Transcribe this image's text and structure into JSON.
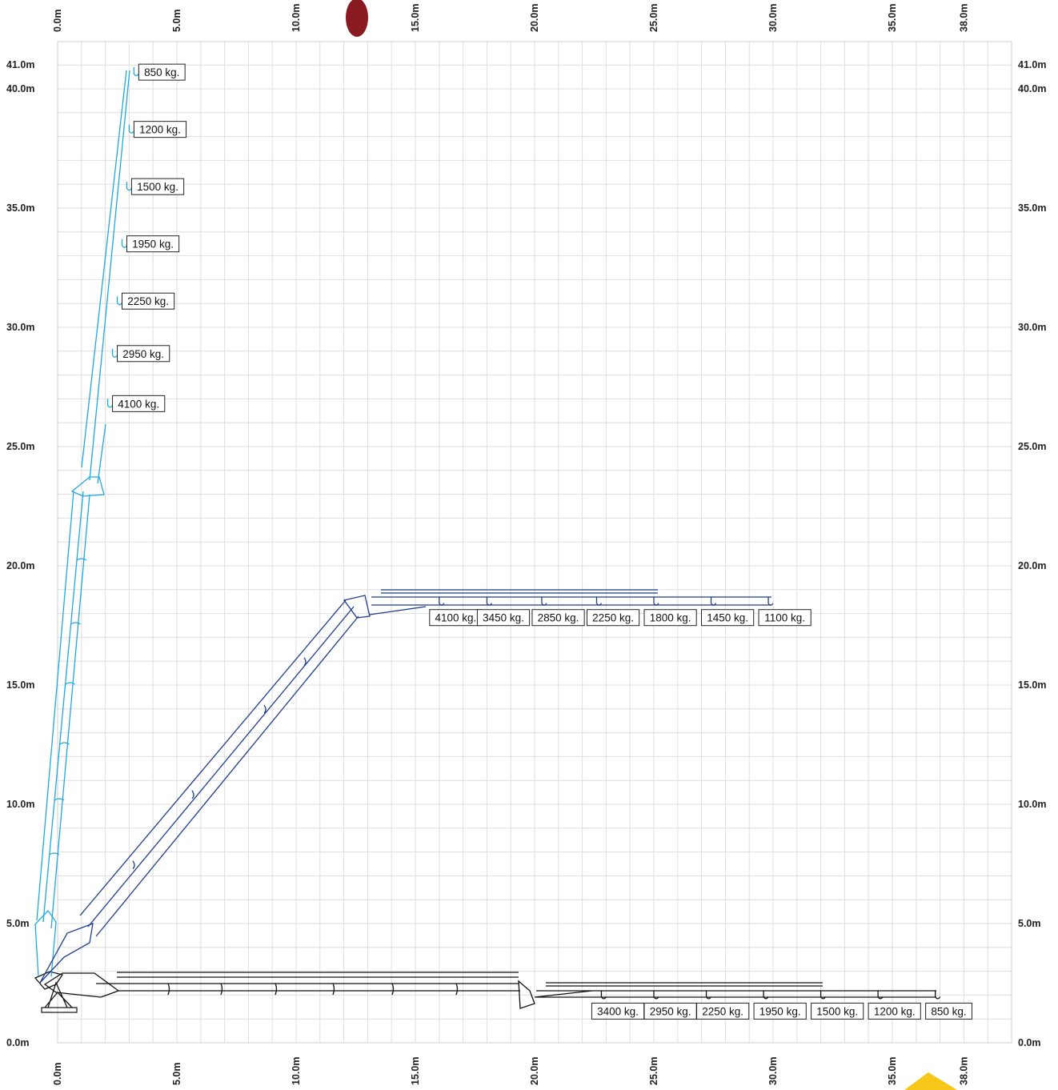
{
  "chart_data": {
    "type": "diagram",
    "top_axis_labels": [
      "0.0m",
      "5.0m",
      "10.0m",
      "15.0m",
      "20.0m",
      "25.0m",
      "30.0m",
      "35.0m",
      "38.0m"
    ],
    "bottom_axis_labels": [
      "0.0m",
      "5.0m",
      "10.0m",
      "15.0m",
      "20.0m",
      "25.0m",
      "30.0m",
      "35.0m",
      "38.0m"
    ],
    "left_axis_labels": [
      "41.0m",
      "40.0m",
      "35.0m",
      "30.0m",
      "25.0m",
      "20.0m",
      "15.0m",
      "10.0m",
      "5.0m",
      "0.0m"
    ],
    "right_axis_labels": [
      "41.0m",
      "40.0m",
      "35.0m",
      "30.0m",
      "25.0m",
      "20.0m",
      "15.0m",
      "10.0m",
      "5.0m",
      "0.0m"
    ],
    "x_range": [
      0,
      40
    ],
    "y_range": [
      0,
      42
    ],
    "grid": true,
    "configurations": [
      {
        "name": "vertical",
        "color": "#1fa8e0",
        "loads": [
          {
            "label": "850 kg.",
            "x": 3.2,
            "y": 40.7
          },
          {
            "label": "1200 kg.",
            "x": 3.0,
            "y": 38.3
          },
          {
            "label": "1500 kg.",
            "x": 2.9,
            "y": 35.9
          },
          {
            "label": "1950 kg.",
            "x": 2.7,
            "y": 33.5
          },
          {
            "label": "2250 kg.",
            "x": 2.5,
            "y": 31.1
          },
          {
            "label": "2950 kg.",
            "x": 2.3,
            "y": 28.9
          },
          {
            "label": "4100 kg.",
            "x": 2.1,
            "y": 26.8
          }
        ]
      },
      {
        "name": "inclined",
        "color": "#1f3e8a",
        "loads": [
          {
            "label": "4100 kg.",
            "x": 16.0,
            "y": 18.5
          },
          {
            "label": "3450 kg.",
            "x": 18.0,
            "y": 18.5
          },
          {
            "label": "2850 kg.",
            "x": 20.3,
            "y": 18.5
          },
          {
            "label": "2250 kg.",
            "x": 22.6,
            "y": 18.5
          },
          {
            "label": "1800 kg.",
            "x": 25.0,
            "y": 18.5
          },
          {
            "label": "1450 kg.",
            "x": 27.4,
            "y": 18.5
          },
          {
            "label": "1100 kg.",
            "x": 29.8,
            "y": 18.5
          }
        ]
      },
      {
        "name": "horizontal",
        "color": "#111111",
        "loads": [
          {
            "label": "3400 kg.",
            "x": 22.8,
            "y": 2.0
          },
          {
            "label": "2950 kg.",
            "x": 25.0,
            "y": 2.0
          },
          {
            "label": "2250 kg.",
            "x": 27.2,
            "y": 2.0
          },
          {
            "label": "1950 kg.",
            "x": 29.6,
            "y": 2.0
          },
          {
            "label": "1500 kg.",
            "x": 32.0,
            "y": 2.0
          },
          {
            "label": "1200 kg.",
            "x": 34.4,
            "y": 2.0
          },
          {
            "label": "850 kg.",
            "x": 36.8,
            "y": 2.0
          }
        ]
      }
    ]
  }
}
